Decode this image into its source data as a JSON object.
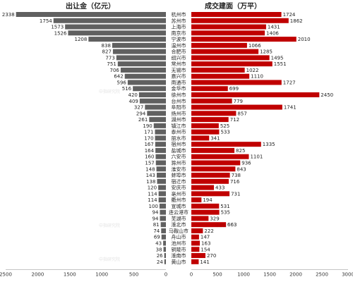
{
  "chart_data": [
    {
      "type": "bar",
      "orientation": "horizontal",
      "direction": "right-to-left",
      "title": "出让金（亿元）",
      "color": "#606060",
      "xlim": [
        0,
        2500
      ],
      "ticks": [
        "2500",
        "2000",
        "1500",
        "1000",
        "500",
        "0"
      ]
    },
    {
      "type": "bar",
      "orientation": "horizontal",
      "direction": "left-to-right",
      "title": "成交建面（万平）",
      "color": "#c00000",
      "xlim": [
        0,
        3000
      ],
      "ticks": [
        "0",
        "500",
        "1000",
        "1500",
        "2000",
        "2500",
        "3000"
      ]
    }
  ],
  "categories": [
    "杭州市",
    "苏州市",
    "上海市",
    "南京市",
    "宁波市",
    "温州市",
    "合肥市",
    "绍兴市",
    "常州市",
    "无锡市",
    "嘉兴市",
    "南通市",
    "金华市",
    "徐州市",
    "台州市",
    "阜阳市",
    "扬州市",
    "湖州市",
    "镇江市",
    "泰州市",
    "丽水市",
    "宿州市",
    "盐城市",
    "六安市",
    "滁州市",
    "淮安市",
    "蚌埠市",
    "宿迁市",
    "安庆市",
    "亳州市",
    "衢州市",
    "宣城市",
    "连云港市",
    "芜湖市",
    "淮北市",
    "马鞍山市",
    "舟山市",
    "池州市",
    "铜陵市",
    "淮南市",
    "黄山市"
  ],
  "left_values": [
    2338,
    1754,
    1573,
    1526,
    1208,
    838,
    827,
    773,
    751,
    706,
    642,
    596,
    516,
    420,
    409,
    327,
    294,
    261,
    190,
    171,
    170,
    167,
    164,
    160,
    157,
    148,
    143,
    138,
    120,
    114,
    114,
    100,
    94,
    94,
    81,
    74,
    69,
    43,
    38,
    26,
    24
  ],
  "right_values": [
    1724,
    1862,
    1431,
    1406,
    2010,
    1066,
    1285,
    1495,
    1551,
    1022,
    1110,
    1727,
    699,
    2450,
    779,
    1741,
    857,
    712,
    525,
    533,
    341,
    1335,
    825,
    1101,
    936,
    843,
    738,
    716,
    433,
    731,
    194,
    531,
    535,
    329,
    663,
    222,
    147,
    163,
    154,
    270,
    141
  ],
  "watermark": "中指研究院"
}
